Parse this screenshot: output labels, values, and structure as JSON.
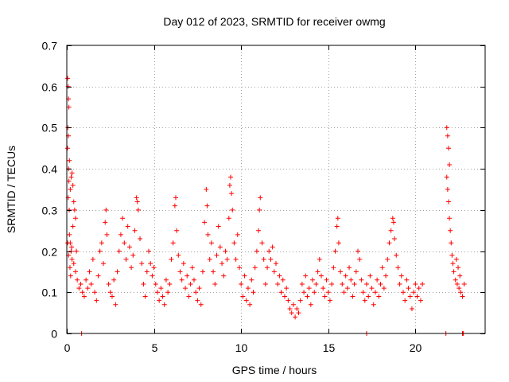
{
  "chart_data": {
    "type": "scatter",
    "title": "Day 012 of 2023, SRMTID for receiver owmg",
    "xlabel": "GPS time / hours",
    "ylabel": "SRMTID / TECUs",
    "xlim": [
      0,
      24
    ],
    "ylim": [
      0,
      0.7
    ],
    "xticks": [
      0,
      5,
      10,
      15,
      20
    ],
    "yticks": [
      0,
      0.1,
      0.2,
      0.3,
      0.4,
      0.5,
      0.6,
      0.7
    ],
    "xtick_labels": [
      "0",
      "5",
      "10",
      "15",
      "20"
    ],
    "ytick_labels": [
      "0",
      "0.1",
      "0.2",
      "0.3",
      "0.4",
      "0.5",
      "0.6",
      "0.7"
    ],
    "grid": true,
    "marker": "plus",
    "color": "#ff0000",
    "series": [
      {
        "name": "SRMTID",
        "points": [
          [
            0.05,
            0.62
          ],
          [
            0.08,
            0.6
          ],
          [
            0.1,
            0.57
          ],
          [
            0.12,
            0.55
          ],
          [
            0.06,
            0.5
          ],
          [
            0.09,
            0.48
          ],
          [
            0.04,
            0.45
          ],
          [
            0.15,
            0.42
          ],
          [
            0.1,
            0.4
          ],
          [
            0.12,
            0.37
          ],
          [
            0.08,
            0.33
          ],
          [
            0.14,
            0.3
          ],
          [
            0.2,
            0.35
          ],
          [
            0.25,
            0.38
          ],
          [
            0.3,
            0.39
          ],
          [
            0.35,
            0.36
          ],
          [
            0.4,
            0.32
          ],
          [
            0.45,
            0.3
          ],
          [
            0.5,
            0.28
          ],
          [
            0.35,
            0.26
          ],
          [
            0.15,
            0.24
          ],
          [
            0.2,
            0.22
          ],
          [
            0.25,
            0.2
          ],
          [
            0.3,
            0.18
          ],
          [
            0.05,
            0.22
          ],
          [
            0.1,
            0.19
          ],
          [
            0.18,
            0.16
          ],
          [
            0.22,
            0.14
          ],
          [
            0.28,
            0.21
          ],
          [
            0.4,
            0.17
          ],
          [
            0.5,
            0.15
          ],
          [
            0.55,
            0.2
          ],
          [
            0.6,
            0.13
          ],
          [
            0.7,
            0.11
          ],
          [
            0.8,
            0.12
          ],
          [
            0.9,
            0.1
          ],
          [
            1.0,
            0.09
          ],
          [
            1.1,
            0.13
          ],
          [
            1.2,
            0.11
          ],
          [
            1.3,
            0.15
          ],
          [
            1.4,
            0.12
          ],
          [
            1.5,
            0.18
          ],
          [
            1.6,
            0.1
          ],
          [
            1.7,
            0.08
          ],
          [
            1.8,
            0.14
          ],
          [
            1.9,
            0.2
          ],
          [
            2.0,
            0.22
          ],
          [
            2.1,
            0.17
          ],
          [
            2.2,
            0.27
          ],
          [
            2.25,
            0.3
          ],
          [
            2.3,
            0.24
          ],
          [
            2.4,
            0.12
          ],
          [
            2.5,
            0.1
          ],
          [
            2.6,
            0.09
          ],
          [
            2.7,
            0.13
          ],
          [
            2.8,
            0.07
          ],
          [
            2.9,
            0.15
          ],
          [
            3.0,
            0.2
          ],
          [
            3.1,
            0.24
          ],
          [
            3.2,
            0.28
          ],
          [
            3.3,
            0.22
          ],
          [
            3.4,
            0.18
          ],
          [
            3.5,
            0.26
          ],
          [
            3.6,
            0.21
          ],
          [
            3.7,
            0.16
          ],
          [
            3.8,
            0.19
          ],
          [
            3.9,
            0.25
          ],
          [
            4.0,
            0.33
          ],
          [
            4.05,
            0.32
          ],
          [
            4.1,
            0.3
          ],
          [
            4.2,
            0.23
          ],
          [
            4.3,
            0.17
          ],
          [
            4.4,
            0.12
          ],
          [
            4.5,
            0.09
          ],
          [
            4.6,
            0.15
          ],
          [
            4.7,
            0.2
          ],
          [
            4.8,
            0.17
          ],
          [
            4.9,
            0.14
          ],
          [
            5.0,
            0.16
          ],
          [
            5.1,
            0.12
          ],
          [
            5.2,
            0.1
          ],
          [
            5.3,
            0.08
          ],
          [
            5.4,
            0.11
          ],
          [
            5.5,
            0.09
          ],
          [
            5.6,
            0.07
          ],
          [
            5.7,
            0.13
          ],
          [
            5.8,
            0.1
          ],
          [
            5.9,
            0.12
          ],
          [
            6.0,
            0.18
          ],
          [
            6.1,
            0.22
          ],
          [
            6.2,
            0.31
          ],
          [
            6.25,
            0.33
          ],
          [
            6.3,
            0.25
          ],
          [
            6.4,
            0.19
          ],
          [
            6.5,
            0.15
          ],
          [
            6.6,
            0.13
          ],
          [
            6.7,
            0.17
          ],
          [
            6.8,
            0.11
          ],
          [
            6.9,
            0.14
          ],
          [
            7.0,
            0.09
          ],
          [
            7.1,
            0.12
          ],
          [
            7.2,
            0.16
          ],
          [
            7.3,
            0.13
          ],
          [
            7.4,
            0.1
          ],
          [
            7.5,
            0.08
          ],
          [
            7.6,
            0.11
          ],
          [
            7.7,
            0.07
          ],
          [
            7.8,
            0.15
          ],
          [
            7.9,
            0.27
          ],
          [
            8.0,
            0.35
          ],
          [
            8.05,
            0.31
          ],
          [
            8.1,
            0.24
          ],
          [
            8.2,
            0.18
          ],
          [
            8.3,
            0.22
          ],
          [
            8.4,
            0.15
          ],
          [
            8.5,
            0.12
          ],
          [
            8.6,
            0.19
          ],
          [
            8.7,
            0.26
          ],
          [
            8.8,
            0.21
          ],
          [
            8.9,
            0.17
          ],
          [
            9.0,
            0.14
          ],
          [
            9.1,
            0.2
          ],
          [
            9.2,
            0.18
          ],
          [
            9.3,
            0.28
          ],
          [
            9.35,
            0.36
          ],
          [
            9.4,
            0.38
          ],
          [
            9.45,
            0.34
          ],
          [
            9.5,
            0.3
          ],
          [
            9.6,
            0.22
          ],
          [
            9.7,
            0.18
          ],
          [
            9.8,
            0.24
          ],
          [
            9.9,
            0.16
          ],
          [
            10.0,
            0.12
          ],
          [
            10.1,
            0.09
          ],
          [
            10.2,
            0.14
          ],
          [
            10.3,
            0.08
          ],
          [
            10.4,
            0.11
          ],
          [
            10.5,
            0.07
          ],
          [
            10.6,
            0.13
          ],
          [
            10.7,
            0.1
          ],
          [
            10.8,
            0.16
          ],
          [
            10.9,
            0.2
          ],
          [
            11.0,
            0.25
          ],
          [
            11.05,
            0.3
          ],
          [
            11.1,
            0.33
          ],
          [
            11.2,
            0.22
          ],
          [
            11.3,
            0.18
          ],
          [
            11.4,
            0.12
          ],
          [
            11.5,
            0.16
          ],
          [
            11.6,
            0.2
          ],
          [
            11.7,
            0.18
          ],
          [
            11.8,
            0.21
          ],
          [
            11.9,
            0.15
          ],
          [
            12.0,
            0.17
          ],
          [
            12.1,
            0.12
          ],
          [
            12.2,
            0.14
          ],
          [
            12.3,
            0.1
          ],
          [
            12.4,
            0.13
          ],
          [
            12.5,
            0.09
          ],
          [
            12.6,
            0.11
          ],
          [
            12.7,
            0.08
          ],
          [
            12.8,
            0.06
          ],
          [
            12.9,
            0.05
          ],
          [
            13.0,
            0.07
          ],
          [
            13.1,
            0.04
          ],
          [
            13.2,
            0.06
          ],
          [
            13.3,
            0.05
          ],
          [
            13.4,
            0.08
          ],
          [
            13.5,
            0.12
          ],
          [
            13.6,
            0.1
          ],
          [
            13.7,
            0.14
          ],
          [
            13.8,
            0.09
          ],
          [
            13.9,
            0.11
          ],
          [
            14.0,
            0.07
          ],
          [
            14.1,
            0.13
          ],
          [
            14.2,
            0.1
          ],
          [
            14.3,
            0.12
          ],
          [
            14.4,
            0.15
          ],
          [
            14.5,
            0.18
          ],
          [
            14.6,
            0.14
          ],
          [
            14.7,
            0.11
          ],
          [
            14.8,
            0.09
          ],
          [
            14.9,
            0.13
          ],
          [
            15.0,
            0.1
          ],
          [
            15.1,
            0.08
          ],
          [
            15.2,
            0.12
          ],
          [
            15.3,
            0.16
          ],
          [
            15.4,
            0.2
          ],
          [
            15.5,
            0.26
          ],
          [
            15.55,
            0.28
          ],
          [
            15.6,
            0.22
          ],
          [
            15.7,
            0.15
          ],
          [
            15.8,
            0.12
          ],
          [
            15.9,
            0.1
          ],
          [
            16.0,
            0.14
          ],
          [
            16.1,
            0.11
          ],
          [
            16.2,
            0.16
          ],
          [
            16.3,
            0.13
          ],
          [
            16.4,
            0.09
          ],
          [
            16.5,
            0.12
          ],
          [
            16.6,
            0.15
          ],
          [
            16.7,
            0.2
          ],
          [
            16.8,
            0.18
          ],
          [
            16.9,
            0.13
          ],
          [
            17.0,
            0.1
          ],
          [
            17.1,
            0.08
          ],
          [
            17.2,
            0.12
          ],
          [
            17.3,
            0.09
          ],
          [
            17.4,
            0.14
          ],
          [
            17.5,
            0.11
          ],
          [
            17.6,
            0.07
          ],
          [
            17.7,
            0.1
          ],
          [
            17.8,
            0.13
          ],
          [
            17.9,
            0.09
          ],
          [
            18.0,
            0.12
          ],
          [
            18.1,
            0.16
          ],
          [
            18.2,
            0.11
          ],
          [
            18.3,
            0.14
          ],
          [
            18.4,
            0.18
          ],
          [
            18.5,
            0.22
          ],
          [
            18.6,
            0.25
          ],
          [
            18.7,
            0.28
          ],
          [
            18.75,
            0.27
          ],
          [
            18.8,
            0.23
          ],
          [
            18.9,
            0.19
          ],
          [
            19.0,
            0.16
          ],
          [
            19.1,
            0.12
          ],
          [
            19.2,
            0.14
          ],
          [
            19.3,
            0.1
          ],
          [
            19.4,
            0.08
          ],
          [
            19.5,
            0.13
          ],
          [
            19.6,
            0.11
          ],
          [
            19.7,
            0.09
          ],
          [
            19.8,
            0.06
          ],
          [
            19.9,
            0.1
          ],
          [
            20.0,
            0.12
          ],
          [
            20.1,
            0.09
          ],
          [
            20.2,
            0.11
          ],
          [
            20.3,
            0.08
          ],
          [
            20.4,
            0.12
          ],
          [
            21.8,
            0.5
          ],
          [
            21.85,
            0.48
          ],
          [
            21.9,
            0.45
          ],
          [
            21.95,
            0.41
          ],
          [
            21.8,
            0.38
          ],
          [
            21.85,
            0.35
          ],
          [
            21.9,
            0.32
          ],
          [
            21.95,
            0.28
          ],
          [
            22.0,
            0.25
          ],
          [
            22.05,
            0.22
          ],
          [
            22.1,
            0.19
          ],
          [
            22.15,
            0.17
          ],
          [
            22.2,
            0.15
          ],
          [
            22.3,
            0.13
          ],
          [
            22.4,
            0.12
          ],
          [
            22.5,
            0.11
          ],
          [
            22.6,
            0.1
          ],
          [
            22.7,
            0.09
          ],
          [
            22.8,
            0.12
          ],
          [
            22.35,
            0.18
          ],
          [
            22.45,
            0.16
          ],
          [
            22.55,
            0.14
          ],
          [
            0.85,
            0.0
          ],
          [
            17.2,
            0.0
          ],
          [
            21.75,
            0.0
          ],
          [
            22.7,
            0.0
          ],
          [
            22.75,
            0.0
          ]
        ]
      }
    ]
  }
}
